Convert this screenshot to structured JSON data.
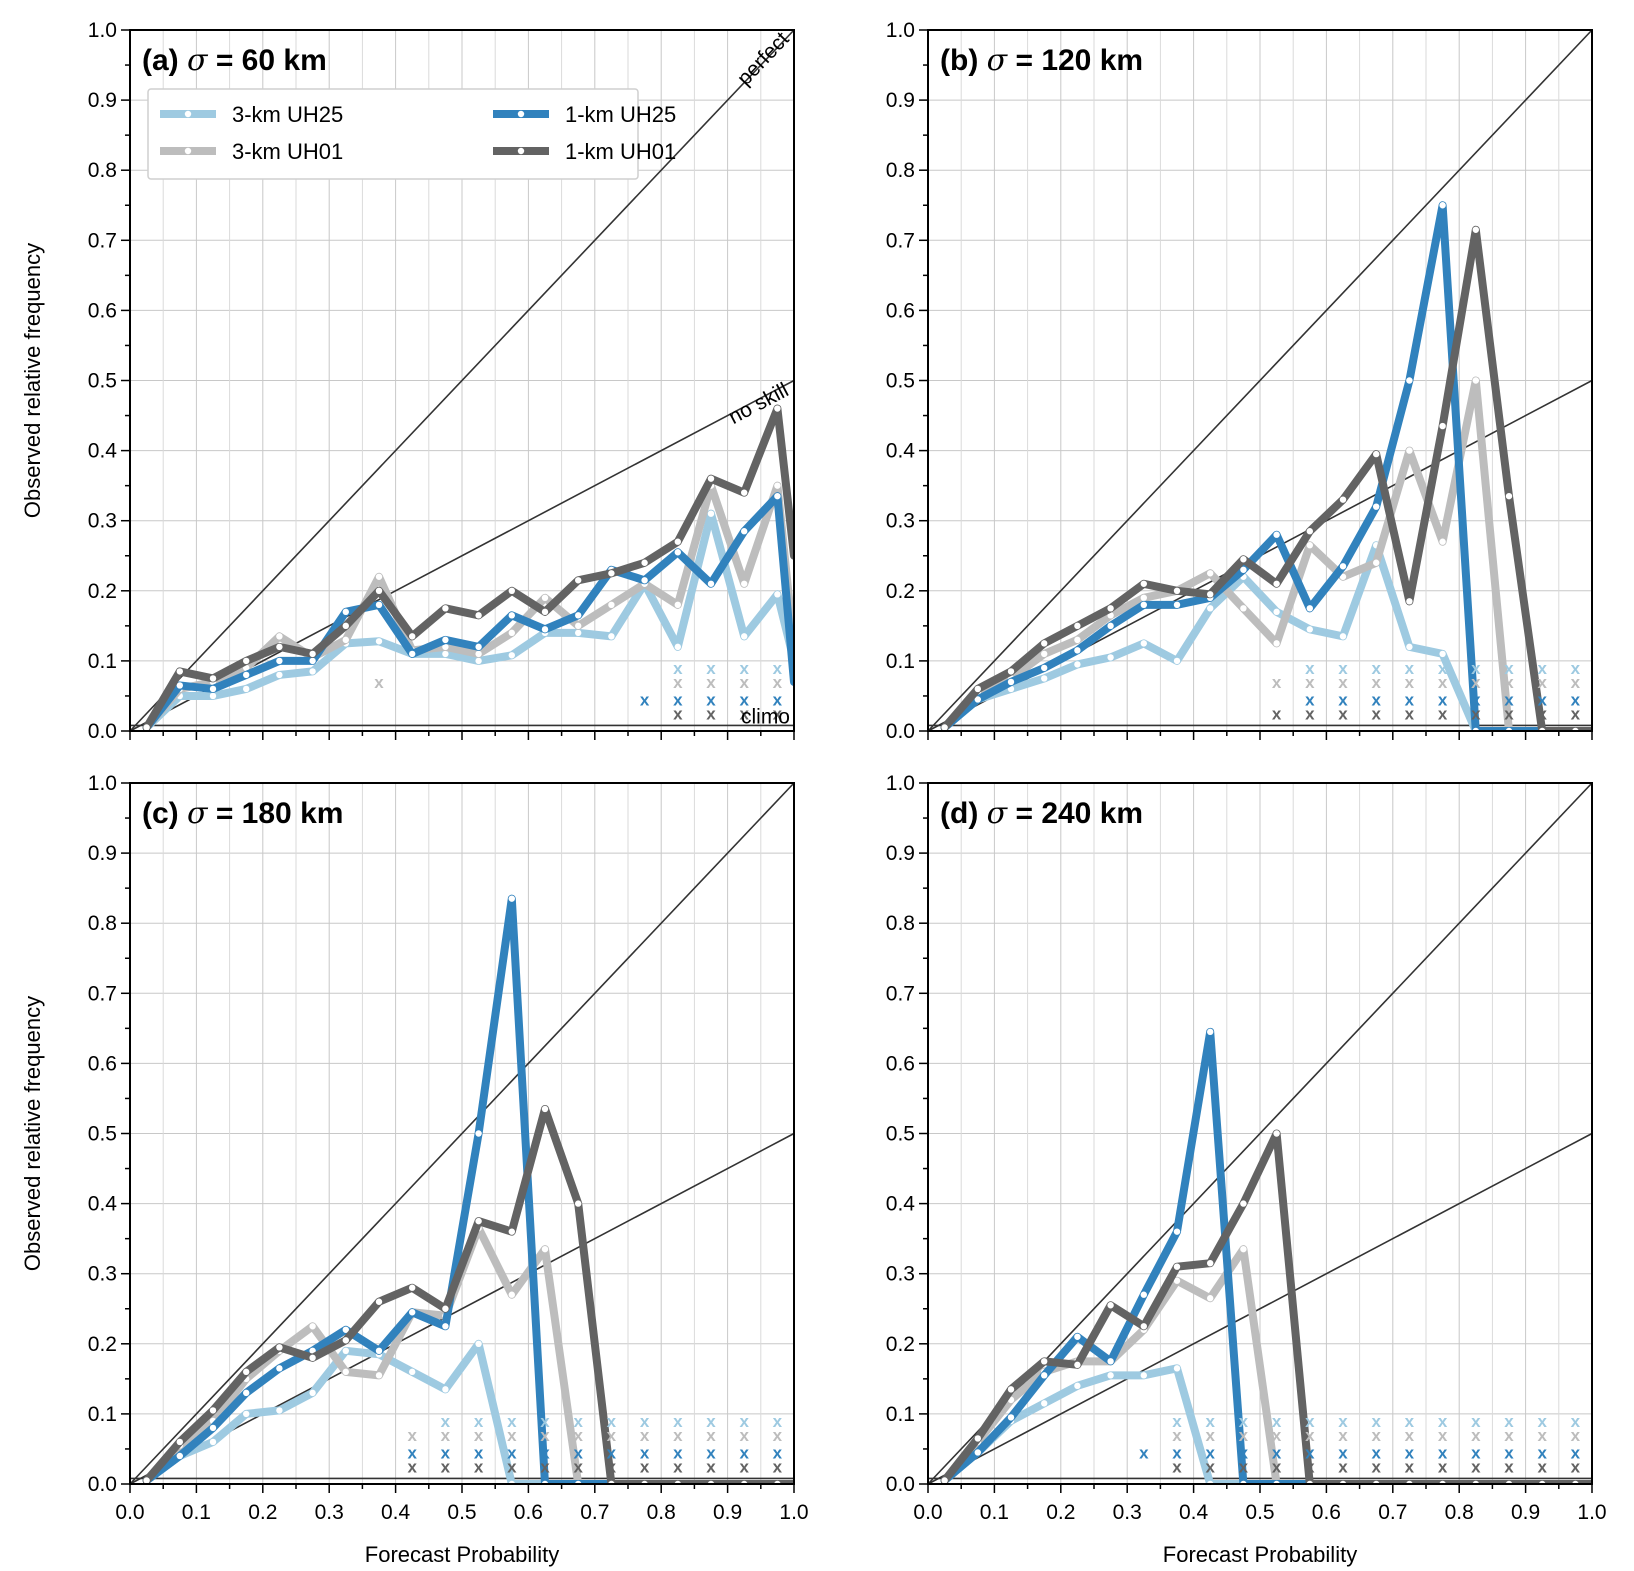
{
  "styles": {
    "3-km UH25": "#9ecae1",
    "1-km UH25": "#3182bd",
    "3-km UH01": "#bdbdbd",
    "1-km UH01": "#636363"
  },
  "chart_data": [
    {
      "type": "line",
      "title_prefix": "(a)",
      "title_sigma": "σ",
      "title_rest": " = 60 km",
      "xlabel": "",
      "ylabel": "Observed relative frequency",
      "xlim": [
        0,
        1
      ],
      "ylim": [
        0,
        1
      ],
      "xticks": [
        "",
        "",
        "",
        "",
        "",
        "",
        "",
        "",
        "",
        "",
        ""
      ],
      "yticks": [
        "0.0",
        "0.1",
        "0.2",
        "0.3",
        "0.4",
        "0.5",
        "0.6",
        "0.7",
        "0.8",
        "0.9",
        "1.0"
      ],
      "climo": 0.008,
      "reference_labels": {
        "perfect": "perfect",
        "no_skill": "no skill",
        "climo": "climo"
      },
      "legend": {
        "placement": "top-left",
        "entries": [
          "3-km UH25",
          "1-km UH25",
          "3-km UH01",
          "1-km UH01"
        ]
      },
      "x": [
        0.025,
        0.075,
        0.125,
        0.175,
        0.225,
        0.275,
        0.325,
        0.375,
        0.425,
        0.475,
        0.525,
        0.575,
        0.625,
        0.675,
        0.725,
        0.775,
        0.825,
        0.875,
        0.925,
        0.975,
        1.0
      ],
      "series": [
        {
          "name": "3-km UH25",
          "values": [
            0.005,
            0.05,
            0.05,
            0.06,
            0.08,
            0.085,
            0.125,
            0.128,
            0.11,
            0.11,
            0.1,
            0.108,
            0.14,
            0.14,
            0.135,
            0.21,
            0.12,
            0.31,
            0.135,
            0.195,
            0.1
          ]
        },
        {
          "name": "3-km UH01",
          "values": [
            0.005,
            0.06,
            0.07,
            0.09,
            0.135,
            0.105,
            0.13,
            0.22,
            0.115,
            0.12,
            0.11,
            0.14,
            0.19,
            0.15,
            0.18,
            0.21,
            0.18,
            0.35,
            0.21,
            0.35,
            0.12
          ]
        },
        {
          "name": "1-km UH25",
          "values": [
            0.005,
            0.065,
            0.06,
            0.08,
            0.1,
            0.1,
            0.17,
            0.18,
            0.11,
            0.13,
            0.12,
            0.165,
            0.145,
            0.165,
            0.23,
            0.215,
            0.255,
            0.21,
            0.285,
            0.335,
            0.07
          ]
        },
        {
          "name": "1-km UH01",
          "values": [
            0.005,
            0.085,
            0.075,
            0.1,
            0.12,
            0.11,
            0.15,
            0.2,
            0.135,
            0.175,
            0.165,
            0.2,
            0.17,
            0.215,
            0.225,
            0.24,
            0.27,
            0.36,
            0.34,
            0.46,
            0.25
          ]
        }
      ],
      "x_markers": [
        {
          "series": "3-km UH25",
          "x": [
            0.825,
            0.875,
            0.925,
            0.975
          ]
        },
        {
          "series": "3-km UH01",
          "x": [
            0.375,
            0.825,
            0.875,
            0.925,
            0.975
          ]
        },
        {
          "series": "1-km UH25",
          "x": [
            0.775,
            0.825,
            0.875,
            0.925,
            0.975
          ]
        },
        {
          "series": "1-km UH01",
          "x": [
            0.825,
            0.875,
            0.925,
            0.975
          ]
        }
      ]
    },
    {
      "type": "line",
      "title_prefix": "(b)",
      "title_sigma": "σ",
      "title_rest": " = 120 km",
      "xlabel": "",
      "ylabel": "",
      "xlim": [
        0,
        1
      ],
      "ylim": [
        0,
        1
      ],
      "xticks": [
        "",
        "",
        "",
        "",
        "",
        "",
        "",
        "",
        "",
        "",
        ""
      ],
      "yticks": [
        "0.0",
        "0.1",
        "0.2",
        "0.3",
        "0.4",
        "0.5",
        "0.6",
        "0.7",
        "0.8",
        "0.9",
        "1.0"
      ],
      "climo": 0.008,
      "x": [
        0.025,
        0.075,
        0.125,
        0.175,
        0.225,
        0.275,
        0.325,
        0.375,
        0.425,
        0.475,
        0.525,
        0.575,
        0.625,
        0.675,
        0.725,
        0.775,
        0.825,
        0.875,
        0.925,
        0.975,
        1.0
      ],
      "series": [
        {
          "name": "3-km UH25",
          "values": [
            0.005,
            0.045,
            0.06,
            0.075,
            0.095,
            0.105,
            0.125,
            0.1,
            0.175,
            0.22,
            0.17,
            0.145,
            0.135,
            0.265,
            0.12,
            0.11,
            0,
            0,
            0,
            0,
            0
          ]
        },
        {
          "name": "3-km UH01",
          "values": [
            0.005,
            0.055,
            0.075,
            0.11,
            0.13,
            0.165,
            0.19,
            0.2,
            0.225,
            0.175,
            0.125,
            0.265,
            0.22,
            0.24,
            0.4,
            0.27,
            0.5,
            0,
            0,
            0,
            0
          ]
        },
        {
          "name": "1-km UH25",
          "values": [
            0.005,
            0.045,
            0.07,
            0.09,
            0.115,
            0.15,
            0.18,
            0.18,
            0.19,
            0.23,
            0.28,
            0.175,
            0.235,
            0.32,
            0.5,
            0.75,
            0,
            0,
            0,
            0,
            0
          ]
        },
        {
          "name": "1-km UH01",
          "values": [
            0.005,
            0.06,
            0.085,
            0.125,
            0.15,
            0.175,
            0.21,
            0.2,
            0.195,
            0.245,
            0.21,
            0.285,
            0.33,
            0.395,
            0.185,
            0.435,
            0.715,
            0.335,
            0,
            0,
            0
          ]
        }
      ],
      "x_markers": [
        {
          "series": "3-km UH25",
          "x": [
            0.575,
            0.625,
            0.675,
            0.725,
            0.775,
            0.825,
            0.875,
            0.925,
            0.975
          ]
        },
        {
          "series": "3-km UH01",
          "x": [
            0.525,
            0.575,
            0.625,
            0.675,
            0.725,
            0.775,
            0.825,
            0.875,
            0.925,
            0.975
          ]
        },
        {
          "series": "1-km UH25",
          "x": [
            0.575,
            0.625,
            0.675,
            0.725,
            0.775,
            0.825,
            0.875,
            0.925,
            0.975
          ]
        },
        {
          "series": "1-km UH01",
          "x": [
            0.525,
            0.575,
            0.625,
            0.675,
            0.725,
            0.775,
            0.825,
            0.875,
            0.925,
            0.975
          ]
        }
      ]
    },
    {
      "type": "line",
      "title_prefix": "(c)",
      "title_sigma": "σ",
      "title_rest": " = 180 km",
      "xlabel": "Forecast Probability",
      "ylabel": "Observed relative frequency",
      "xlim": [
        0,
        1
      ],
      "ylim": [
        0,
        1
      ],
      "xticks": [
        "0.0",
        "0.1",
        "0.2",
        "0.3",
        "0.4",
        "0.5",
        "0.6",
        "0.7",
        "0.8",
        "0.9",
        "1.0"
      ],
      "yticks": [
        "0.0",
        "0.1",
        "0.2",
        "0.3",
        "0.4",
        "0.5",
        "0.6",
        "0.7",
        "0.8",
        "0.9",
        "1.0"
      ],
      "climo": 0.008,
      "x": [
        0.025,
        0.075,
        0.125,
        0.175,
        0.225,
        0.275,
        0.325,
        0.375,
        0.425,
        0.475,
        0.525,
        0.575,
        0.625,
        0.675,
        0.725,
        0.775,
        0.825,
        0.875,
        0.925,
        0.975,
        1.0
      ],
      "series": [
        {
          "name": "3-km UH25",
          "values": [
            0.005,
            0.04,
            0.06,
            0.1,
            0.105,
            0.13,
            0.19,
            0.185,
            0.16,
            0.135,
            0.2,
            0,
            0,
            0,
            0,
            0,
            0,
            0,
            0,
            0,
            0
          ]
        },
        {
          "name": "3-km UH01",
          "values": [
            0.005,
            0.055,
            0.09,
            0.15,
            0.19,
            0.225,
            0.16,
            0.155,
            0.245,
            0.24,
            0.365,
            0.27,
            0.335,
            0,
            0,
            0,
            0,
            0,
            0,
            0,
            0
          ]
        },
        {
          "name": "1-km UH25",
          "values": [
            0.005,
            0.04,
            0.08,
            0.13,
            0.165,
            0.19,
            0.22,
            0.19,
            0.245,
            0.225,
            0.5,
            0.835,
            0,
            0,
            0,
            0,
            0,
            0,
            0,
            0,
            0
          ]
        },
        {
          "name": "1-km UH01",
          "values": [
            0.005,
            0.06,
            0.105,
            0.16,
            0.195,
            0.18,
            0.205,
            0.26,
            0.28,
            0.25,
            0.375,
            0.36,
            0.535,
            0.4,
            0,
            0,
            0,
            0,
            0,
            0,
            0
          ]
        }
      ],
      "x_markers": [
        {
          "series": "3-km UH25",
          "x": [
            0.475,
            0.525,
            0.575,
            0.625,
            0.675,
            0.725,
            0.775,
            0.825,
            0.875,
            0.925,
            0.975
          ]
        },
        {
          "series": "3-km UH01",
          "x": [
            0.425,
            0.475,
            0.525,
            0.575,
            0.625,
            0.675,
            0.725,
            0.775,
            0.825,
            0.875,
            0.925,
            0.975
          ]
        },
        {
          "series": "1-km UH25",
          "x": [
            0.425,
            0.475,
            0.525,
            0.575,
            0.625,
            0.675,
            0.725,
            0.775,
            0.825,
            0.875,
            0.925,
            0.975
          ]
        },
        {
          "series": "1-km UH01",
          "x": [
            0.425,
            0.475,
            0.525,
            0.575,
            0.625,
            0.675,
            0.725,
            0.775,
            0.825,
            0.875,
            0.925,
            0.975
          ]
        }
      ]
    },
    {
      "type": "line",
      "title_prefix": "(d)",
      "title_sigma": "σ",
      "title_rest": " = 240 km",
      "xlabel": "Forecast Probability",
      "ylabel": "",
      "xlim": [
        0,
        1
      ],
      "ylim": [
        0,
        1
      ],
      "xticks": [
        "0.0",
        "0.1",
        "0.2",
        "0.3",
        "0.4",
        "0.5",
        "0.6",
        "0.7",
        "0.8",
        "0.9",
        "1.0"
      ],
      "yticks": [
        "0.0",
        "0.1",
        "0.2",
        "0.3",
        "0.4",
        "0.5",
        "0.6",
        "0.7",
        "0.8",
        "0.9",
        "1.0"
      ],
      "climo": 0.008,
      "x": [
        0.025,
        0.075,
        0.125,
        0.175,
        0.225,
        0.275,
        0.325,
        0.375,
        0.425,
        0.475,
        0.525,
        0.575,
        0.625,
        0.675,
        0.725,
        0.775,
        0.825,
        0.875,
        0.925,
        0.975,
        1.0
      ],
      "series": [
        {
          "name": "3-km UH25",
          "values": [
            0.005,
            0.045,
            0.09,
            0.115,
            0.14,
            0.155,
            0.155,
            0.165,
            0,
            0,
            0,
            0,
            0,
            0,
            0,
            0,
            0,
            0,
            0,
            0,
            0
          ]
        },
        {
          "name": "3-km UH01",
          "values": [
            0.005,
            0.06,
            0.12,
            0.16,
            0.175,
            0.175,
            0.22,
            0.29,
            0.265,
            0.335,
            0,
            0,
            0,
            0,
            0,
            0,
            0,
            0,
            0,
            0,
            0
          ]
        },
        {
          "name": "1-km UH25",
          "values": [
            0.005,
            0.045,
            0.095,
            0.155,
            0.21,
            0.175,
            0.27,
            0.36,
            0.645,
            0,
            0,
            0,
            0,
            0,
            0,
            0,
            0,
            0,
            0,
            0,
            0
          ]
        },
        {
          "name": "1-km UH01",
          "values": [
            0.005,
            0.065,
            0.135,
            0.175,
            0.17,
            0.255,
            0.225,
            0.31,
            0.315,
            0.4,
            0.5,
            0,
            0,
            0,
            0,
            0,
            0,
            0,
            0,
            0,
            0
          ]
        }
      ],
      "x_markers": [
        {
          "series": "3-km UH25",
          "x": [
            0.375,
            0.425,
            0.475,
            0.525,
            0.575,
            0.625,
            0.675,
            0.725,
            0.775,
            0.825,
            0.875,
            0.925,
            0.975
          ]
        },
        {
          "series": "3-km UH01",
          "x": [
            0.375,
            0.425,
            0.475,
            0.525,
            0.575,
            0.625,
            0.675,
            0.725,
            0.775,
            0.825,
            0.875,
            0.925,
            0.975
          ]
        },
        {
          "series": "1-km UH25",
          "x": [
            0.325,
            0.375,
            0.425,
            0.475,
            0.525,
            0.575,
            0.625,
            0.675,
            0.725,
            0.775,
            0.825,
            0.875,
            0.925,
            0.975
          ]
        },
        {
          "series": "1-km UH01",
          "x": [
            0.375,
            0.425,
            0.475,
            0.525,
            0.575,
            0.625,
            0.675,
            0.725,
            0.775,
            0.825,
            0.875,
            0.925,
            0.975
          ]
        }
      ]
    }
  ]
}
